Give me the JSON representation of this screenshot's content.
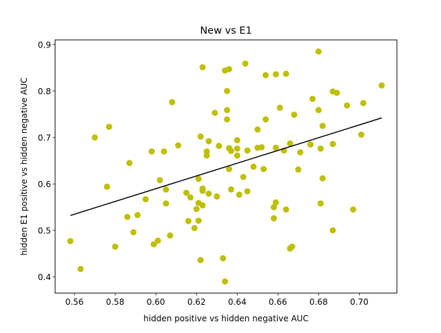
{
  "chart_data": {
    "type": "scatter",
    "title": "New vs E1",
    "xlabel": "hidden positive vs hidden negative  AUC",
    "ylabel": "hidden E1 positive vs hidden negative  AUC",
    "xlim": [
      0.5505,
      0.7185
    ],
    "ylim": [
      0.365,
      0.91
    ],
    "xticks": [
      0.56,
      0.58,
      0.6,
      0.62,
      0.64,
      0.66,
      0.68,
      0.7
    ],
    "xtick_labels": [
      "0.56",
      "0.58",
      "0.60",
      "0.62",
      "0.64",
      "0.66",
      "0.68",
      "0.70"
    ],
    "yticks": [
      0.4,
      0.5,
      0.6,
      0.7,
      0.8,
      0.9
    ],
    "ytick_labels": [
      "0.4",
      "0.5",
      "0.6",
      "0.7",
      "0.8",
      "0.9"
    ],
    "grid": false,
    "point_color": "#bfbf00",
    "fit_line_color": "#000000",
    "series": [
      {
        "points": [
          [
            0.558,
            0.477
          ],
          [
            0.563,
            0.417
          ],
          [
            0.57,
            0.7
          ],
          [
            0.576,
            0.594
          ],
          [
            0.577,
            0.723
          ],
          [
            0.58,
            0.465
          ],
          [
            0.587,
            0.645
          ],
          [
            0.586,
            0.529
          ],
          [
            0.589,
            0.496
          ],
          [
            0.591,
            0.533
          ],
          [
            0.595,
            0.567
          ],
          [
            0.598,
            0.67
          ],
          [
            0.599,
            0.47
          ],
          [
            0.601,
            0.478
          ],
          [
            0.602,
            0.608
          ],
          [
            0.604,
            0.67
          ],
          [
            0.605,
            0.558
          ],
          [
            0.605,
            0.588
          ],
          [
            0.607,
            0.489
          ],
          [
            0.608,
            0.776
          ],
          [
            0.611,
            0.683
          ],
          [
            0.615,
            0.581
          ],
          [
            0.616,
            0.52
          ],
          [
            0.617,
            0.571
          ],
          [
            0.619,
            0.505
          ],
          [
            0.62,
            0.546
          ],
          [
            0.621,
            0.521
          ],
          [
            0.621,
            0.559
          ],
          [
            0.621,
            0.611
          ],
          [
            0.622,
            0.436
          ],
          [
            0.622,
            0.702
          ],
          [
            0.623,
            0.851
          ],
          [
            0.623,
            0.585
          ],
          [
            0.623,
            0.59
          ],
          [
            0.623,
            0.554
          ],
          [
            0.625,
            0.661
          ],
          [
            0.625,
            0.67
          ],
          [
            0.626,
            0.692
          ],
          [
            0.626,
            0.579
          ],
          [
            0.629,
            0.753
          ],
          [
            0.63,
            0.573
          ],
          [
            0.631,
            0.682
          ],
          [
            0.633,
            0.44
          ],
          [
            0.634,
            0.39
          ],
          [
            0.634,
            0.844
          ],
          [
            0.635,
            0.739
          ],
          [
            0.635,
            0.759
          ],
          [
            0.635,
            0.8
          ],
          [
            0.636,
            0.847
          ],
          [
            0.636,
            0.632
          ],
          [
            0.636,
            0.677
          ],
          [
            0.637,
            0.671
          ],
          [
            0.637,
            0.588
          ],
          [
            0.64,
            0.661
          ],
          [
            0.64,
            0.676
          ],
          [
            0.64,
            0.694
          ],
          [
            0.641,
            0.577
          ],
          [
            0.643,
            0.615
          ],
          [
            0.644,
            0.859
          ],
          [
            0.645,
            0.584
          ],
          [
            0.645,
            0.672
          ],
          [
            0.648,
            0.637
          ],
          [
            0.65,
            0.678
          ],
          [
            0.65,
            0.717
          ],
          [
            0.652,
            0.679
          ],
          [
            0.653,
            0.632
          ],
          [
            0.654,
            0.739
          ],
          [
            0.654,
            0.834
          ],
          [
            0.658,
            0.55
          ],
          [
            0.658,
            0.526
          ],
          [
            0.659,
            0.678
          ],
          [
            0.659,
            0.836
          ],
          [
            0.659,
            0.56
          ],
          [
            0.661,
            0.764
          ],
          [
            0.663,
            0.672
          ],
          [
            0.664,
            0.545
          ],
          [
            0.664,
            0.837
          ],
          [
            0.666,
            0.687
          ],
          [
            0.666,
            0.461
          ],
          [
            0.667,
            0.465
          ],
          [
            0.668,
            0.749
          ],
          [
            0.67,
            0.631
          ],
          [
            0.671,
            0.668
          ],
          [
            0.676,
            0.685
          ],
          [
            0.677,
            0.783
          ],
          [
            0.68,
            0.885
          ],
          [
            0.68,
            0.759
          ],
          [
            0.681,
            0.676
          ],
          [
            0.681,
            0.558
          ],
          [
            0.682,
            0.612
          ],
          [
            0.682,
            0.725
          ],
          [
            0.687,
            0.686
          ],
          [
            0.687,
            0.5
          ],
          [
            0.687,
            0.799
          ],
          [
            0.689,
            0.796
          ],
          [
            0.694,
            0.769
          ],
          [
            0.697,
            0.545
          ],
          [
            0.701,
            0.706
          ],
          [
            0.702,
            0.774
          ],
          [
            0.711,
            0.812
          ]
        ]
      }
    ],
    "fit_line": {
      "x": [
        0.558,
        0.711
      ],
      "y": [
        0.532,
        0.742
      ]
    }
  }
}
